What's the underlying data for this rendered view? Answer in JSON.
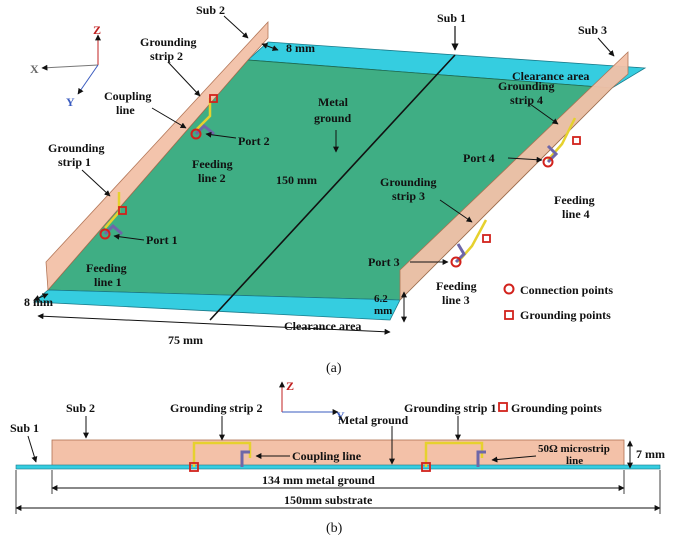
{
  "panel_a": {
    "caption": "(a)",
    "axes": {
      "z": "Z",
      "x": "X",
      "y": "Y"
    },
    "labels": {
      "sub2": "Sub 2",
      "sub1": "Sub 1",
      "sub3": "Sub 3",
      "gs2_a": "Grounding",
      "gs2_b": "strip 2",
      "coupling_a": "Coupling",
      "coupling_b": "line",
      "port2": "Port 2",
      "feed2_a": "Feeding",
      "feed2_b": "line 2",
      "gs1_a": "Grounding",
      "gs1_b": "strip 1",
      "port1": "Port 1",
      "feed1_a": "Feeding",
      "feed1_b": "line 1",
      "metal_a": "Metal",
      "metal_b": "ground",
      "len150": "150 mm",
      "len8_top": "8 mm",
      "len8_bot": "8 mm",
      "len75": "75 mm",
      "clear_top": "Clearance area",
      "clear_bot": "Clearance area",
      "gs4_a": "Grounding",
      "gs4_b": "strip 4",
      "port4": "Port 4",
      "feed4_a": "Feeding",
      "feed4_b": "line 4",
      "gs3_a": "Grounding",
      "gs3_b": "strip 3",
      "port3": "Port 3",
      "feed3_a": "Feeding",
      "feed3_b": "line 3",
      "h62_a": "6.2",
      "h62_b": "mm",
      "legend_conn": "Connection points",
      "legend_gnd": "Grounding points"
    }
  },
  "panel_b": {
    "caption": "(b)",
    "axes": {
      "z": "Z",
      "y": "Y"
    },
    "labels": {
      "sub1": "Sub 1",
      "sub2": "Sub 2",
      "gs2": "Grounding strip 2",
      "metal": "Metal ground",
      "gs1": "Grounding strip 1",
      "legend_gnd": "Grounding points",
      "coupling": "Coupling line",
      "microstrip_a": "50Ω microstrip",
      "microstrip_b": "line",
      "h7": "7 mm",
      "len134": "134 mm metal ground",
      "len150": "150mm substrate"
    }
  },
  "colors": {
    "ground": "#3fae84",
    "clearance": "#35cde0",
    "substrate": "#f3c1a8",
    "strip": "#e6d12e",
    "feed": "#6e67a8",
    "marker": "#d2221c"
  }
}
